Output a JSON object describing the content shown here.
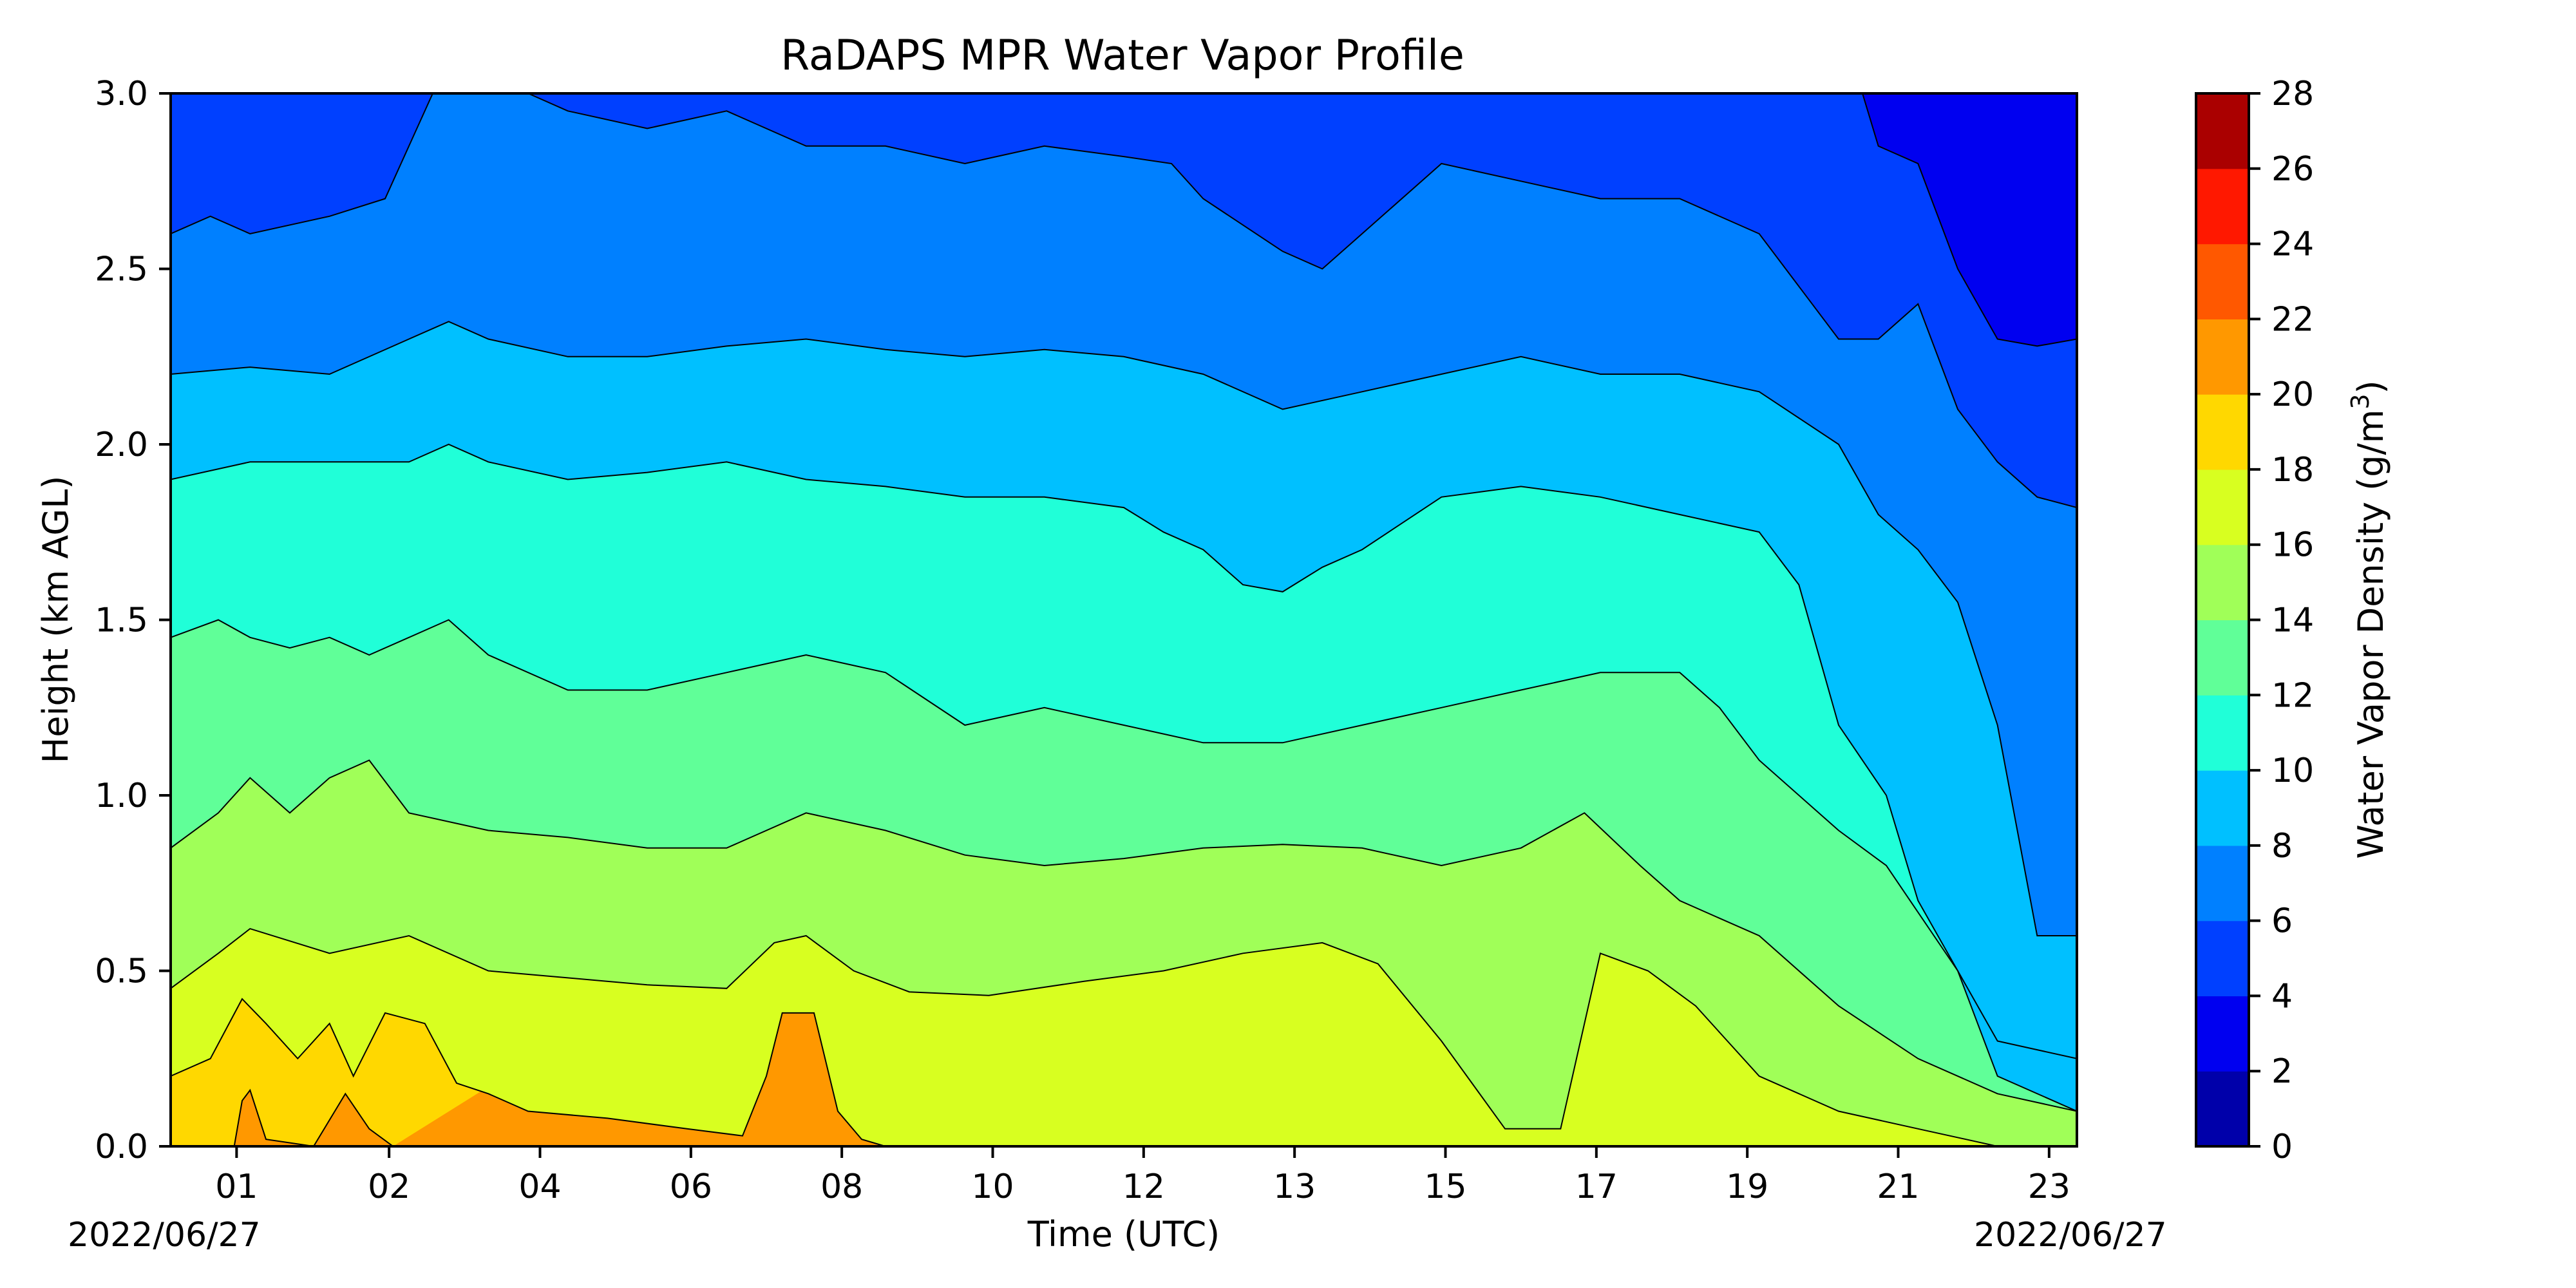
{
  "chart_data": {
    "type": "heatmap",
    "title": "RaDAPS MPR Water Vapor Profile",
    "xlabel": "Time (UTC)",
    "ylabel": "Height (km AGL)",
    "start_date_label": "2022/06/27",
    "end_date_label": "2022/06/27",
    "x_range_hours": [
      0,
      24
    ],
    "ylim": [
      0.0,
      3.0
    ],
    "x_ticks": [
      {
        "hour": 0.83,
        "label": "01"
      },
      {
        "hour": 2.75,
        "label": "02"
      },
      {
        "hour": 4.65,
        "label": "04"
      },
      {
        "hour": 6.55,
        "label": "06"
      },
      {
        "hour": 8.45,
        "label": "08"
      },
      {
        "hour": 10.35,
        "label": "10"
      },
      {
        "hour": 12.25,
        "label": "12"
      },
      {
        "hour": 14.15,
        "label": "13"
      },
      {
        "hour": 16.05,
        "label": "15"
      },
      {
        "hour": 17.95,
        "label": "17"
      },
      {
        "hour": 19.85,
        "label": "19"
      },
      {
        "hour": 21.75,
        "label": "21"
      },
      {
        "hour": 23.65,
        "label": "23"
      }
    ],
    "y_ticks": [
      {
        "value": 0.0,
        "label": "0.0"
      },
      {
        "value": 0.5,
        "label": "0.5"
      },
      {
        "value": 1.0,
        "label": "1.0"
      },
      {
        "value": 1.5,
        "label": "1.5"
      },
      {
        "value": 2.0,
        "label": "2.0"
      },
      {
        "value": 2.5,
        "label": "2.5"
      },
      {
        "value": 3.0,
        "label": "3.0"
      }
    ],
    "colorbar": {
      "label_main": "Water Vapor Density (g/m",
      "label_sup": "3",
      "label_end": ")",
      "levels": [
        0,
        2,
        4,
        6,
        8,
        10,
        12,
        14,
        16,
        18,
        20,
        22,
        24,
        26,
        28
      ],
      "tick_labels": [
        "0",
        "2",
        "4",
        "6",
        "8",
        "10",
        "12",
        "14",
        "16",
        "18",
        "20",
        "22",
        "24",
        "26",
        "28"
      ],
      "colors": [
        "#0000aa",
        "#0000f0",
        "#0040ff",
        "#0080ff",
        "#00c0ff",
        "#20ffd8",
        "#60ff98",
        "#a0ff58",
        "#d8ff20",
        "#ffd800",
        "#ff9800",
        "#ff5800",
        "#ff1800",
        "#aa0000"
      ]
    },
    "contour_boundaries_km": [
      {
        "level": 20,
        "points": [
          [
            0,
            0.0
          ],
          [
            0.8,
            0.0
          ],
          [
            0.9,
            0.13
          ],
          [
            1.0,
            0.16
          ],
          [
            1.2,
            0.02
          ],
          [
            1.8,
            0.0
          ],
          [
            2.2,
            0.15
          ],
          [
            2.5,
            0.05
          ],
          [
            2.8,
            0.0
          ]
        ]
      },
      {
        "level": 18,
        "points": [
          [
            0,
            0.2
          ],
          [
            0.5,
            0.25
          ],
          [
            0.9,
            0.42
          ],
          [
            1.2,
            0.35
          ],
          [
            1.6,
            0.25
          ],
          [
            2.0,
            0.35
          ],
          [
            2.3,
            0.2
          ],
          [
            2.7,
            0.38
          ],
          [
            3.2,
            0.35
          ],
          [
            3.6,
            0.18
          ],
          [
            4.0,
            0.15
          ],
          [
            4.5,
            0.1
          ],
          [
            5.5,
            0.08
          ],
          [
            6.5,
            0.05
          ],
          [
            7.2,
            0.03
          ],
          [
            7.5,
            0.2
          ],
          [
            7.7,
            0.38
          ],
          [
            8.1,
            0.38
          ],
          [
            8.4,
            0.1
          ],
          [
            8.7,
            0.02
          ],
          [
            9.0,
            0.0
          ],
          [
            24,
            0.0
          ]
        ]
      },
      {
        "level": 16,
        "points": [
          [
            0,
            0.45
          ],
          [
            0.6,
            0.55
          ],
          [
            1.0,
            0.62
          ],
          [
            2.0,
            0.55
          ],
          [
            3.0,
            0.6
          ],
          [
            4.0,
            0.5
          ],
          [
            5.0,
            0.48
          ],
          [
            6.0,
            0.46
          ],
          [
            7.0,
            0.45
          ],
          [
            7.6,
            0.58
          ],
          [
            8.0,
            0.6
          ],
          [
            8.6,
            0.5
          ],
          [
            9.3,
            0.44
          ],
          [
            10.3,
            0.43
          ],
          [
            11.5,
            0.47
          ],
          [
            12.5,
            0.5
          ],
          [
            13.5,
            0.55
          ],
          [
            14.5,
            0.58
          ],
          [
            15.2,
            0.52
          ],
          [
            16.0,
            0.3
          ],
          [
            16.8,
            0.05
          ],
          [
            17.5,
            0.05
          ],
          [
            18.0,
            0.55
          ],
          [
            18.6,
            0.5
          ],
          [
            19.2,
            0.4
          ],
          [
            19.6,
            0.3
          ],
          [
            20.0,
            0.2
          ],
          [
            21.0,
            0.1
          ],
          [
            22.0,
            0.05
          ],
          [
            23.0,
            0.0
          ],
          [
            24,
            0.0
          ]
        ]
      },
      {
        "level": 14,
        "points": [
          [
            0,
            0.85
          ],
          [
            0.6,
            0.95
          ],
          [
            1.0,
            1.05
          ],
          [
            1.5,
            0.95
          ],
          [
            2.0,
            1.05
          ],
          [
            2.5,
            1.1
          ],
          [
            3.0,
            0.95
          ],
          [
            4.0,
            0.9
          ],
          [
            5.0,
            0.88
          ],
          [
            6.0,
            0.85
          ],
          [
            7.0,
            0.85
          ],
          [
            8.0,
            0.95
          ],
          [
            9.0,
            0.9
          ],
          [
            10.0,
            0.83
          ],
          [
            11.0,
            0.8
          ],
          [
            12.0,
            0.82
          ],
          [
            13.0,
            0.85
          ],
          [
            14.0,
            0.86
          ],
          [
            15.0,
            0.85
          ],
          [
            16.0,
            0.8
          ],
          [
            17.0,
            0.85
          ],
          [
            17.8,
            0.95
          ],
          [
            18.5,
            0.8
          ],
          [
            19.0,
            0.7
          ],
          [
            19.5,
            0.65
          ],
          [
            20.0,
            0.6
          ],
          [
            20.5,
            0.5
          ],
          [
            21.0,
            0.4
          ],
          [
            22.0,
            0.25
          ],
          [
            23.0,
            0.15
          ],
          [
            24,
            0.1
          ]
        ]
      },
      {
        "level": 12,
        "points": [
          [
            0,
            1.45
          ],
          [
            0.6,
            1.5
          ],
          [
            1.0,
            1.45
          ],
          [
            1.5,
            1.42
          ],
          [
            2.0,
            1.45
          ],
          [
            2.5,
            1.4
          ],
          [
            3.0,
            1.45
          ],
          [
            3.5,
            1.5
          ],
          [
            4.0,
            1.4
          ],
          [
            5.0,
            1.3
          ],
          [
            6.0,
            1.3
          ],
          [
            7.0,
            1.35
          ],
          [
            8.0,
            1.4
          ],
          [
            9.0,
            1.35
          ],
          [
            10.0,
            1.2
          ],
          [
            11.0,
            1.25
          ],
          [
            12.0,
            1.2
          ],
          [
            13.0,
            1.15
          ],
          [
            14.0,
            1.15
          ],
          [
            15.0,
            1.2
          ],
          [
            16.0,
            1.25
          ],
          [
            17.0,
            1.3
          ],
          [
            18.0,
            1.35
          ],
          [
            19.0,
            1.35
          ],
          [
            19.5,
            1.25
          ],
          [
            20.0,
            1.1
          ],
          [
            21.0,
            0.9
          ],
          [
            21.6,
            0.8
          ],
          [
            22.5,
            0.5
          ],
          [
            23.0,
            0.3
          ],
          [
            24,
            0.25
          ]
        ]
      },
      {
        "level": 10,
        "points": [
          [
            0,
            1.9
          ],
          [
            1.0,
            1.95
          ],
          [
            2.0,
            1.95
          ],
          [
            3.0,
            1.95
          ],
          [
            3.5,
            2.0
          ],
          [
            4.0,
            1.95
          ],
          [
            5.0,
            1.9
          ],
          [
            6.0,
            1.92
          ],
          [
            7.0,
            1.95
          ],
          [
            8.0,
            1.9
          ],
          [
            9.0,
            1.88
          ],
          [
            10.0,
            1.85
          ],
          [
            11.0,
            1.85
          ],
          [
            12.0,
            1.82
          ],
          [
            12.5,
            1.75
          ],
          [
            13.0,
            1.7
          ],
          [
            13.5,
            1.6
          ],
          [
            14.0,
            1.58
          ],
          [
            14.5,
            1.65
          ],
          [
            15.0,
            1.7
          ],
          [
            16.0,
            1.85
          ],
          [
            17.0,
            1.88
          ],
          [
            18.0,
            1.85
          ],
          [
            19.0,
            1.8
          ],
          [
            20.0,
            1.75
          ],
          [
            20.5,
            1.6
          ],
          [
            21.0,
            1.2
          ],
          [
            21.6,
            1.0
          ],
          [
            22.0,
            0.7
          ],
          [
            22.5,
            0.5
          ],
          [
            23.0,
            0.2
          ],
          [
            24,
            0.1
          ]
        ]
      },
      {
        "level": 8,
        "points": [
          [
            0,
            2.2
          ],
          [
            1.0,
            2.22
          ],
          [
            2.0,
            2.2
          ],
          [
            3.0,
            2.3
          ],
          [
            3.5,
            2.35
          ],
          [
            4.0,
            2.3
          ],
          [
            5.0,
            2.25
          ],
          [
            6.0,
            2.25
          ],
          [
            7.0,
            2.28
          ],
          [
            8.0,
            2.3
          ],
          [
            9.0,
            2.27
          ],
          [
            10.0,
            2.25
          ],
          [
            11.0,
            2.27
          ],
          [
            12.0,
            2.25
          ],
          [
            13.0,
            2.2
          ],
          [
            14.0,
            2.1
          ],
          [
            15.0,
            2.15
          ],
          [
            16.0,
            2.2
          ],
          [
            17.0,
            2.25
          ],
          [
            18.0,
            2.2
          ],
          [
            19.0,
            2.2
          ],
          [
            20.0,
            2.15
          ],
          [
            21.0,
            2.0
          ],
          [
            21.5,
            1.8
          ],
          [
            22.0,
            1.7
          ],
          [
            22.5,
            1.55
          ],
          [
            23.0,
            1.2
          ],
          [
            23.5,
            0.6
          ],
          [
            24,
            0.6
          ]
        ]
      },
      {
        "level": 6,
        "points": [
          [
            0,
            2.6
          ],
          [
            0.5,
            2.65
          ],
          [
            1.0,
            2.6
          ],
          [
            2.0,
            2.65
          ],
          [
            2.7,
            2.7
          ],
          [
            3.3,
            3.0
          ],
          [
            4.5,
            3.0
          ],
          [
            5.0,
            2.95
          ],
          [
            6.0,
            2.9
          ],
          [
            7.0,
            2.95
          ],
          [
            8.0,
            2.85
          ],
          [
            9.0,
            2.85
          ],
          [
            10.0,
            2.8
          ],
          [
            11.0,
            2.85
          ],
          [
            12.0,
            2.82
          ],
          [
            12.6,
            2.8
          ],
          [
            13.0,
            2.7
          ],
          [
            14.0,
            2.55
          ],
          [
            14.5,
            2.5
          ],
          [
            15.0,
            2.6
          ],
          [
            16.0,
            2.8
          ],
          [
            17.0,
            2.75
          ],
          [
            18.0,
            2.7
          ],
          [
            19.0,
            2.7
          ],
          [
            20.0,
            2.6
          ],
          [
            21.0,
            2.3
          ],
          [
            21.5,
            2.3
          ],
          [
            22.0,
            2.4
          ],
          [
            22.5,
            2.1
          ],
          [
            23.0,
            1.95
          ],
          [
            23.5,
            1.85
          ],
          [
            24,
            1.82
          ]
        ]
      },
      {
        "level": 4,
        "points": [
          [
            0,
            3.0
          ],
          [
            21.3,
            3.0
          ],
          [
            21.5,
            2.85
          ],
          [
            22.0,
            2.8
          ],
          [
            22.5,
            2.5
          ],
          [
            23.0,
            2.3
          ],
          [
            23.5,
            2.28
          ],
          [
            24,
            2.3
          ]
        ]
      }
    ]
  }
}
